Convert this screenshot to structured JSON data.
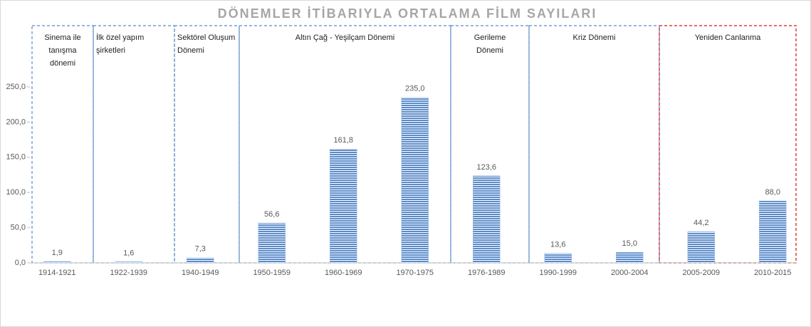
{
  "chart_data": {
    "type": "bar",
    "title": "DÖNEMLER İTİBARIYLA ORTALAMA FİLM SAYILARI",
    "categories": [
      "1914-1921",
      "1922-1939",
      "1940-1949",
      "1950-1959",
      "1960-1969",
      "1970-1975",
      "1976-1989",
      "1990-1999",
      "2000-2004",
      "2005-2009",
      "2010-2015"
    ],
    "values": [
      1.9,
      1.6,
      7.3,
      56.6,
      161.8,
      235.0,
      123.6,
      13.6,
      15.0,
      44.2,
      88.0
    ],
    "value_labels": [
      "1,9",
      "1,6",
      "7,3",
      "56,6",
      "161,8",
      "235,0",
      "123,6",
      "13,6",
      "15,0",
      "44,2",
      "88,0"
    ],
    "color": "#5b8bc9",
    "ylim": [
      0,
      300
    ],
    "yticks": [
      {
        "value": 0,
        "label": "0,0"
      },
      {
        "value": 50,
        "label": "50,0"
      },
      {
        "value": 100,
        "label": "100,0"
      },
      {
        "value": 150,
        "label": "150,0"
      },
      {
        "value": 200,
        "label": "200,0"
      },
      {
        "value": 250,
        "label": "250,0"
      }
    ],
    "periods": [
      {
        "label": [
          "Sinema ile",
          "tanışma",
          "dönemi"
        ],
        "color": "#5b8bc9"
      },
      {
        "label": [
          "İlk özel yapım",
          "şirketleri"
        ],
        "color": "#5b8bc9"
      },
      {
        "label": [
          "Sektörel Oluşum",
          "Dönemi"
        ],
        "color": "#5b8bc9"
      },
      {
        "label": [
          "Altın Çağ - Yeşilçam Dönemi"
        ],
        "color": "#5b8bc9"
      },
      {
        "label": [
          "Gerileme",
          "Dönemi"
        ],
        "color": "#5b8bc9"
      },
      {
        "label": [
          "Kriz Dönemi"
        ],
        "color": "#5b8bc9"
      },
      {
        "label": [
          "Yeniden Canlanma"
        ],
        "color": "#e03c3c"
      }
    ]
  }
}
